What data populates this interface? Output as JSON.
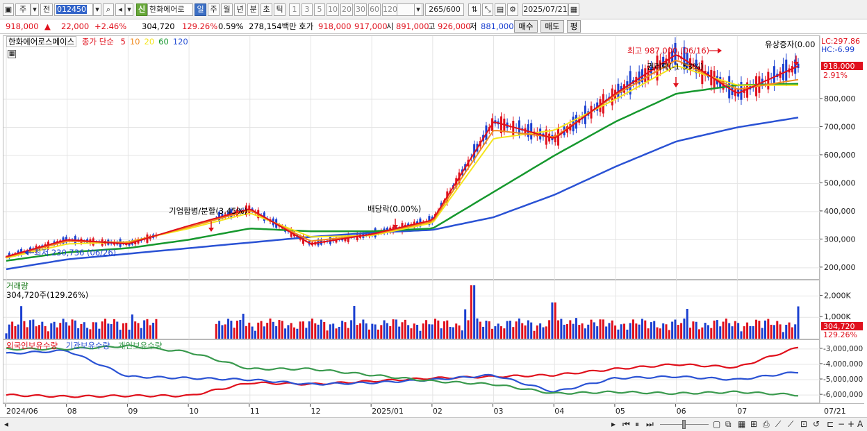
{
  "toolbar": {
    "market": "주",
    "prev_label": "전",
    "code": "012450",
    "new_badge": "신",
    "stock_name": "한화에어로",
    "periods": [
      "일",
      "주",
      "월",
      "년",
      "분",
      "초",
      "틱"
    ],
    "selected_period": "일",
    "intervals": [
      "1",
      "3",
      "5",
      "10",
      "20",
      "30",
      "60",
      "120"
    ],
    "count": "265",
    "count_max": "/600",
    "date": "2025/07/21"
  },
  "info": {
    "price": "918,000",
    "arrow": "▲",
    "change": "22,000",
    "change_pct": "+2.46%",
    "volume": "304,720",
    "volume_pct": "129.26%",
    "turnover_pct": "0.59%",
    "amount": "278,154백만",
    "ask_label": "호가",
    "ask1": "918,000",
    "ask2": "917,000",
    "open_label": "시",
    "open": "891,000",
    "high_label": "고",
    "high": "926,000",
    "low_label": "저",
    "low": "881,000",
    "buy_btn": "매수",
    "sell_btn": "매도",
    "eval_btn": "평"
  },
  "price_panel": {
    "title_name": "한화에어로스페이스",
    "title_indicator": "종가 단순",
    "ma_periods": [
      "5",
      "10",
      "20",
      "60",
      "120"
    ],
    "lc_label": "LC:297.86",
    "hc_label": "HC:-6.99",
    "current_price_label": "918,000",
    "current_pct_label": "2.91%",
    "annotations": {
      "high": "최고 987,000 (06/16)",
      "low": "최저 230,736 (06/26)",
      "merger": "기업합병/분할(3.45%)",
      "dividend": "배당락(0.00%)",
      "rights": "권리락(-1.53%)",
      "capital": "유상증자(0.00"
    }
  },
  "volume_panel": {
    "title": "거래량",
    "subtitle": "304,720주(129.26%)",
    "current_label": "304,720",
    "current_pct": "129.26%"
  },
  "holdings_panel": {
    "foreign_label": "외국인보유수량",
    "inst_label": "기관보유수량",
    "indiv_label": "개인보유수량"
  },
  "xaxis_labels": [
    "2024/06",
    "08",
    "09",
    "10",
    "11",
    "12",
    "2025/01",
    "02",
    "03",
    "04",
    "05",
    "06",
    "07"
  ],
  "xaxis_last": "07/21",
  "colors": {
    "up": "#e0101c",
    "down": "#1a3fd0",
    "ma5": "#e0101c",
    "ma10": "#f08a1e",
    "ma20": "#f5e51c",
    "ma60": "#16982e",
    "ma120": "#2a52d4",
    "foreign": "#e0101c",
    "inst": "#2a52d4",
    "indiv": "#3a9a4e"
  },
  "chart_data": [
    {
      "type": "line",
      "title": "",
      "x": [
        "2024/06",
        "08",
        "09",
        "10",
        "11",
        "12",
        "2025/01",
        "02",
        "03",
        "04",
        "05",
        "06",
        "07",
        "07/21"
      ],
      "series": [
        {
          "name": "5",
          "values": [
            240000,
            300000,
            285000,
            350000,
            410000,
            285000,
            320000,
            370000,
            720000,
            660000,
            820000,
            960000,
            820000,
            918000
          ]
        },
        {
          "name": "10",
          "values": [
            238000,
            295000,
            290000,
            345000,
            405000,
            295000,
            318000,
            365000,
            690000,
            665000,
            815000,
            940000,
            835000,
            870000
          ]
        },
        {
          "name": "20",
          "values": [
            235000,
            285000,
            292000,
            340000,
            395000,
            310000,
            315000,
            360000,
            660000,
            690000,
            800000,
            920000,
            850000,
            850000
          ]
        },
        {
          "name": "60",
          "values": [
            225000,
            255000,
            270000,
            300000,
            340000,
            330000,
            330000,
            340000,
            470000,
            600000,
            720000,
            820000,
            850000,
            855000
          ]
        },
        {
          "name": "120",
          "values": [
            195000,
            230000,
            250000,
            270000,
            290000,
            310000,
            325000,
            335000,
            380000,
            460000,
            560000,
            650000,
            700000,
            735000
          ]
        }
      ],
      "yticks": [
        200000,
        300000,
        400000,
        500000,
        600000,
        700000,
        800000
      ],
      "ytick_labels": [
        "200,000",
        "300,000",
        "400,000",
        "500,000",
        "600,000",
        "700,000",
        "800,000"
      ],
      "ylim": [
        170000,
        1010000
      ]
    },
    {
      "type": "bar",
      "title": "거래량",
      "yticks": [
        1000000,
        2000000
      ],
      "ytick_labels": [
        "1,000K",
        "2,000K"
      ],
      "ylim": [
        0,
        2600000
      ]
    },
    {
      "type": "line",
      "series": [
        {
          "name": "외국인보유수량",
          "values": [
            -6000000,
            -6100000,
            -6050000,
            -6050000,
            -5200000,
            -5300000,
            -5100000,
            -4900000,
            -4800000,
            -4700000,
            -4300000,
            -4000000,
            -4200000,
            -2900000
          ]
        },
        {
          "name": "기관보유수량",
          "values": [
            -3300000,
            -3100000,
            -4800000,
            -4900000,
            -5000000,
            -5300000,
            -5200000,
            -5000000,
            -4700000,
            -5800000,
            -4900000,
            -4800000,
            -5000000,
            -4500000
          ]
        },
        {
          "name": "개인보유수량",
          "values": [
            -3000000,
            -3000000,
            -2800000,
            -3200000,
            -4300000,
            -4300000,
            -4700000,
            -5100000,
            -5300000,
            -5900000,
            -5800000,
            -5900000,
            -5800000,
            -6000000
          ]
        }
      ],
      "yticks": [
        -3000000,
        -4000000,
        -5000000,
        -6000000
      ],
      "ytick_labels": [
        "-3,000,000",
        "-4,000,000",
        "-5,000,000",
        "-6,000,000"
      ],
      "ylim": [
        -6400000,
        -2600000
      ]
    }
  ]
}
